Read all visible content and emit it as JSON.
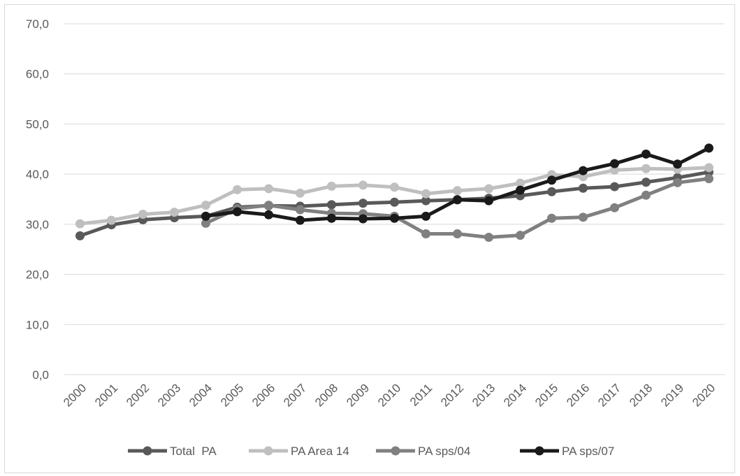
{
  "chart_data": {
    "type": "line",
    "categories": [
      "2000",
      "2001",
      "2002",
      "2003",
      "2004",
      "2005",
      "2006",
      "2007",
      "2008",
      "2009",
      "2010",
      "2011",
      "2012",
      "2013",
      "2014",
      "2015",
      "2016",
      "2017",
      "2018",
      "2019",
      "2020"
    ],
    "y_ticks": [
      "0,0",
      "10,0",
      "20,0",
      "30,0",
      "40,0",
      "50,0",
      "60,0",
      "70,0"
    ],
    "ylim": [
      0,
      70
    ],
    "grid": "horizontal",
    "legend_position": "bottom",
    "series": [
      {
        "name": "Total  PA",
        "color": "#595959",
        "values": [
          27.7,
          29.9,
          30.9,
          31.3,
          31.6,
          33.4,
          33.7,
          33.6,
          33.9,
          34.2,
          34.4,
          34.7,
          34.9,
          35.2,
          35.7,
          36.5,
          37.2,
          37.5,
          38.4,
          39.3,
          40.4
        ]
      },
      {
        "name": "PA Area 14",
        "color": "#bfbfbf",
        "values": [
          30.1,
          30.8,
          32.0,
          32.4,
          33.8,
          36.9,
          37.1,
          36.2,
          37.6,
          37.8,
          37.4,
          36.1,
          36.7,
          37.1,
          38.2,
          39.9,
          39.5,
          40.8,
          41.1,
          41.0,
          41.3
        ]
      },
      {
        "name": "PA sps/04",
        "color": "#808080",
        "values": [
          null,
          null,
          null,
          null,
          30.2,
          33.1,
          33.8,
          32.9,
          32.2,
          32.1,
          31.6,
          28.1,
          28.1,
          27.4,
          27.8,
          31.2,
          31.4,
          33.3,
          35.8,
          38.3,
          39.1
        ]
      },
      {
        "name": "PA sps/07",
        "color": "#1a1a1a",
        "values": [
          null,
          null,
          null,
          null,
          31.6,
          32.5,
          31.9,
          30.8,
          31.2,
          31.1,
          31.2,
          31.6,
          34.9,
          34.7,
          36.8,
          38.8,
          40.7,
          42.1,
          44.0,
          42.0,
          45.2
        ]
      }
    ]
  }
}
